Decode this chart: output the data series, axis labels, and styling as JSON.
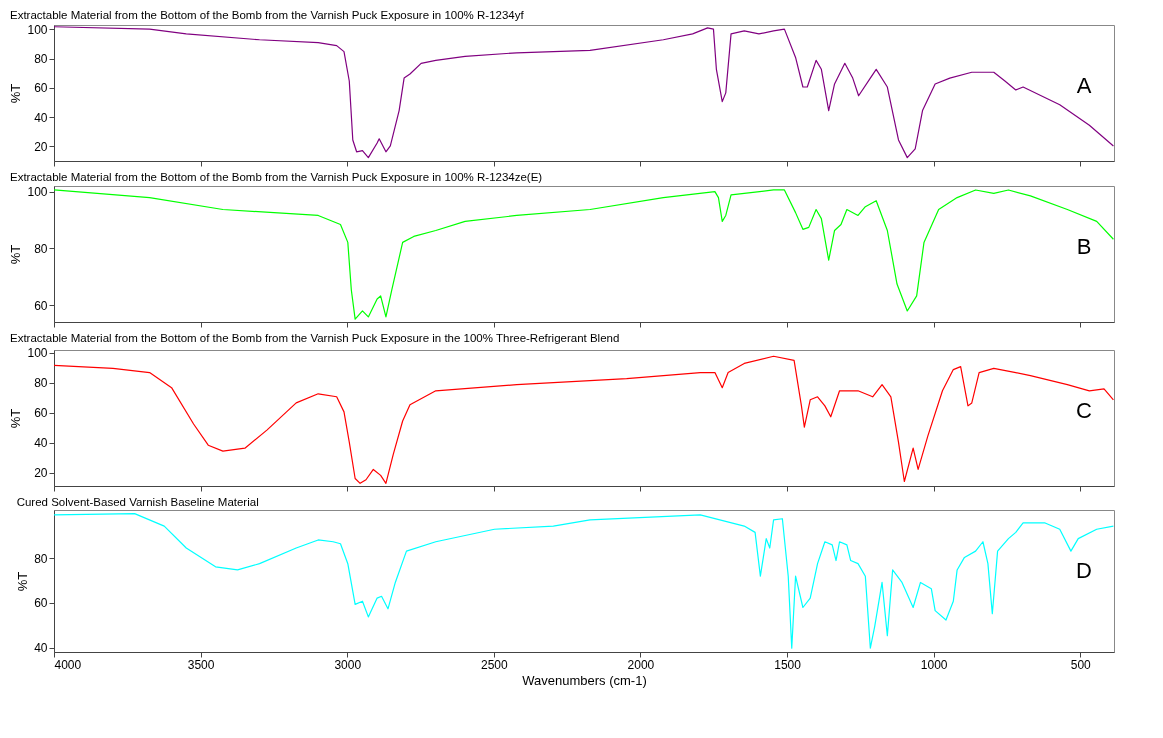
{
  "chart_data": [
    {
      "type": "line",
      "title": "Extractable Material from the Bottom of the Bomb from the Varnish Puck Exposure in 100% R-1234yf",
      "ylabel": "%T",
      "annotations": [
        "A"
      ],
      "tick_labels": "y",
      "xlim": [
        4000,
        385
      ],
      "xticks": [
        4000,
        3500,
        3000,
        2500,
        2000,
        1500,
        1000,
        500
      ],
      "ylim": [
        10,
        103
      ],
      "yticks": [
        20,
        40,
        60,
        80,
        100
      ],
      "grid": false,
      "series": [
        {
          "color": "#800080",
          "x": [
            4000,
            3674,
            3549,
            3299,
            3099,
            3036,
            3011,
            2993,
            2981,
            2968,
            2948,
            2928,
            2898,
            2891,
            2868,
            2853,
            2823,
            2806,
            2786,
            2748,
            2698,
            2598,
            2422,
            2172,
            1922,
            1822,
            1771,
            1751,
            1741,
            1721,
            1709,
            1691,
            1646,
            1596,
            1546,
            1509,
            1471,
            1446,
            1431,
            1401,
            1383,
            1358,
            1338,
            1303,
            1276,
            1256,
            1216,
            1196,
            1158,
            1120,
            1090,
            1063,
            1038,
            995,
            945,
            870,
            795,
            757,
            720,
            695,
            570,
            469,
            387
          ],
          "values": [
            101.8,
            100.2,
            96.9,
            92.9,
            90.9,
            88.9,
            84.8,
            64.7,
            24.4,
            16.3,
            17.1,
            12.3,
            22.3,
            25.2,
            16.3,
            20.3,
            44.5,
            66.7,
            69.5,
            76.8,
            78.8,
            81.6,
            84,
            85.6,
            92.9,
            96.9,
            101,
            100.2,
            72.7,
            50.6,
            56.6,
            96.9,
            99,
            96.9,
            99,
            100.2,
            80.8,
            60.6,
            60.6,
            78.8,
            72.7,
            44.5,
            62.7,
            76.8,
            66.7,
            54.6,
            66.7,
            72.7,
            60.6,
            24.4,
            12.3,
            18.3,
            44.5,
            62.7,
            66.7,
            70.7,
            70.7,
            64.7,
            58.6,
            60.6,
            48.5,
            34.4,
            20.3
          ]
        }
      ]
    },
    {
      "type": "line",
      "title": "Extractable Material from the Bottom of the Bomb from the Varnish Puck Exposure in 100% R-1234ze(E)",
      "ylabel": "%T",
      "annotations": [
        "B"
      ],
      "tick_labels": "y",
      "xlim": [
        4000,
        385
      ],
      "xticks": [
        4000,
        3500,
        3000,
        2500,
        2000,
        1500,
        1000,
        500
      ],
      "ylim": [
        54,
        102
      ],
      "yticks": [
        60,
        80,
        100
      ],
      "grid": false,
      "series": [
        {
          "color": "#00ff00",
          "x": [
            4000,
            3674,
            3424,
            3099,
            3023,
            2998,
            2986,
            2973,
            2948,
            2928,
            2898,
            2886,
            2868,
            2848,
            2811,
            2773,
            2698,
            2598,
            2422,
            2172,
            1922,
            1746,
            1734,
            1721,
            1709,
            1691,
            1546,
            1509,
            1471,
            1446,
            1426,
            1401,
            1383,
            1358,
            1338,
            1316,
            1296,
            1258,
            1233,
            1196,
            1158,
            1125,
            1090,
            1058,
            1033,
            983,
            920,
            857,
            795,
            745,
            670,
            544,
            444,
            387
          ],
          "values": [
            100.6,
            97.9,
            93.7,
            91.6,
            88.4,
            82.1,
            65.3,
            55,
            57.9,
            55.8,
            62.1,
            63.2,
            55.8,
            65.3,
            82.1,
            84.2,
            86.3,
            89.5,
            91.6,
            93.7,
            97.9,
            100,
            97.9,
            89.5,
            91.6,
            98.9,
            100.6,
            100.6,
            92.6,
            86.7,
            87.4,
            93.7,
            90.5,
            75.8,
            86.3,
            88.4,
            93.7,
            91.6,
            94.7,
            96.8,
            86.3,
            67.4,
            57.9,
            63.2,
            82.1,
            93.7,
            97.9,
            100.6,
            99.4,
            100.6,
            98.5,
            93.7,
            89.5,
            83.2
          ]
        }
      ]
    },
    {
      "type": "line",
      "title": "Extractable Material from the Bottom of the Bomb from the Varnish Puck Exposure in the 100% Three-Refrigerant Blend",
      "ylabel": "%T",
      "annotations": [
        "C"
      ],
      "tick_labels": "y",
      "xlim": [
        4000,
        385
      ],
      "xticks": [
        4000,
        3500,
        3000,
        2500,
        2000,
        1500,
        1000,
        500
      ],
      "ylim": [
        11,
        102
      ],
      "yticks": [
        20,
        40,
        60,
        80,
        100
      ],
      "grid": false,
      "series": [
        {
          "color": "#ff0000",
          "x": [
            4000,
            3799,
            3674,
            3599,
            3524,
            3474,
            3424,
            3349,
            3274,
            3174,
            3099,
            3036,
            3011,
            2993,
            2973,
            2956,
            2936,
            2911,
            2886,
            2868,
            2843,
            2811,
            2786,
            2698,
            2422,
            2047,
            1796,
            1746,
            1721,
            1701,
            1646,
            1546,
            1476,
            1451,
            1441,
            1421,
            1396,
            1371,
            1351,
            1321,
            1258,
            1208,
            1176,
            1146,
            1120,
            1100,
            1070,
            1053,
            1020,
            970,
            933,
            908,
            883,
            870,
            845,
            795,
            720,
            670,
            544,
            469,
            419,
            387
          ],
          "values": [
            91.7,
            89.7,
            86.9,
            76.8,
            52.5,
            38.3,
            34.3,
            36.3,
            48.4,
            66.6,
            72.7,
            70.7,
            60.6,
            40.3,
            16,
            12.8,
            15.2,
            22.1,
            18.1,
            12.8,
            32.2,
            54.5,
            65.4,
            74.7,
            78.8,
            82.8,
            86.9,
            86.9,
            76.8,
            86.9,
            93,
            97.8,
            95,
            64.6,
            50.4,
            68.7,
            70.7,
            64.6,
            57.3,
            74.7,
            74.7,
            70.7,
            78.8,
            70.7,
            40.3,
            14,
            36.3,
            22.1,
            44.4,
            74.7,
            88.9,
            90.9,
            64.6,
            66.6,
            86.9,
            89.7,
            86.9,
            84.9,
            78.8,
            74.7,
            76,
            68.7
          ]
        }
      ]
    },
    {
      "type": "line",
      "title": "Cured Solvent-Based Varnish Baseline Material",
      "xlabel": "Wavenumbers (cm-1)",
      "ylabel": "%T",
      "annotations": [
        "D"
      ],
      "xlim": [
        4000,
        385
      ],
      "xticks": [
        4000,
        3500,
        3000,
        2500,
        2000,
        1500,
        1000,
        500
      ],
      "ylim": [
        38,
        101.5
      ],
      "yticks": [
        40,
        60,
        80
      ],
      "grid": false,
      "series": [
        {
          "color": "#00ffff",
          "x": [
            4000,
            3725,
            3624,
            3549,
            3449,
            3374,
            3299,
            3174,
            3099,
            3048,
            3023,
            2998,
            2973,
            2948,
            2928,
            2898,
            2883,
            2861,
            2836,
            2798,
            2698,
            2498,
            2297,
            2172,
            1796,
            1646,
            1609,
            1591,
            1571,
            1559,
            1546,
            1516,
            1496,
            1484,
            1471,
            1446,
            1421,
            1396,
            1371,
            1346,
            1333,
            1321,
            1296,
            1283,
            1258,
            1233,
            1216,
            1201,
            1176,
            1158,
            1140,
            1108,
            1070,
            1045,
            1008,
            995,
            958,
            933,
            920,
            895,
            857,
            832,
            815,
            800,
            782,
            745,
            720,
            695,
            620,
            570,
            532,
            507,
            444,
            387
          ],
          "values": [
            99.3,
            99.9,
            94.3,
            84.5,
            76.1,
            74.7,
            77.5,
            84.5,
            88.1,
            87.3,
            86.4,
            77.5,
            59.3,
            60.7,
            53.7,
            62.1,
            62.9,
            57.3,
            69.1,
            83.1,
            87.3,
            92.9,
            94.3,
            97.1,
            99.3,
            94.3,
            91.5,
            71.9,
            88.7,
            84.5,
            97.1,
            97.6,
            71.9,
            39.7,
            71.9,
            57.9,
            62.1,
            77.5,
            87.3,
            85.9,
            78.9,
            87.3,
            85.9,
            78.9,
            77.5,
            71.9,
            39.7,
            49.5,
            69.1,
            45.3,
            74.7,
            69.1,
            57.9,
            69.1,
            66.3,
            56.5,
            52.3,
            60.7,
            74.7,
            80.3,
            83.1,
            87.3,
            77.5,
            55.1,
            83.1,
            88.7,
            91.5,
            95.7,
            95.7,
            92.9,
            83.1,
            88.7,
            92.9,
            94.3
          ]
        }
      ]
    }
  ]
}
